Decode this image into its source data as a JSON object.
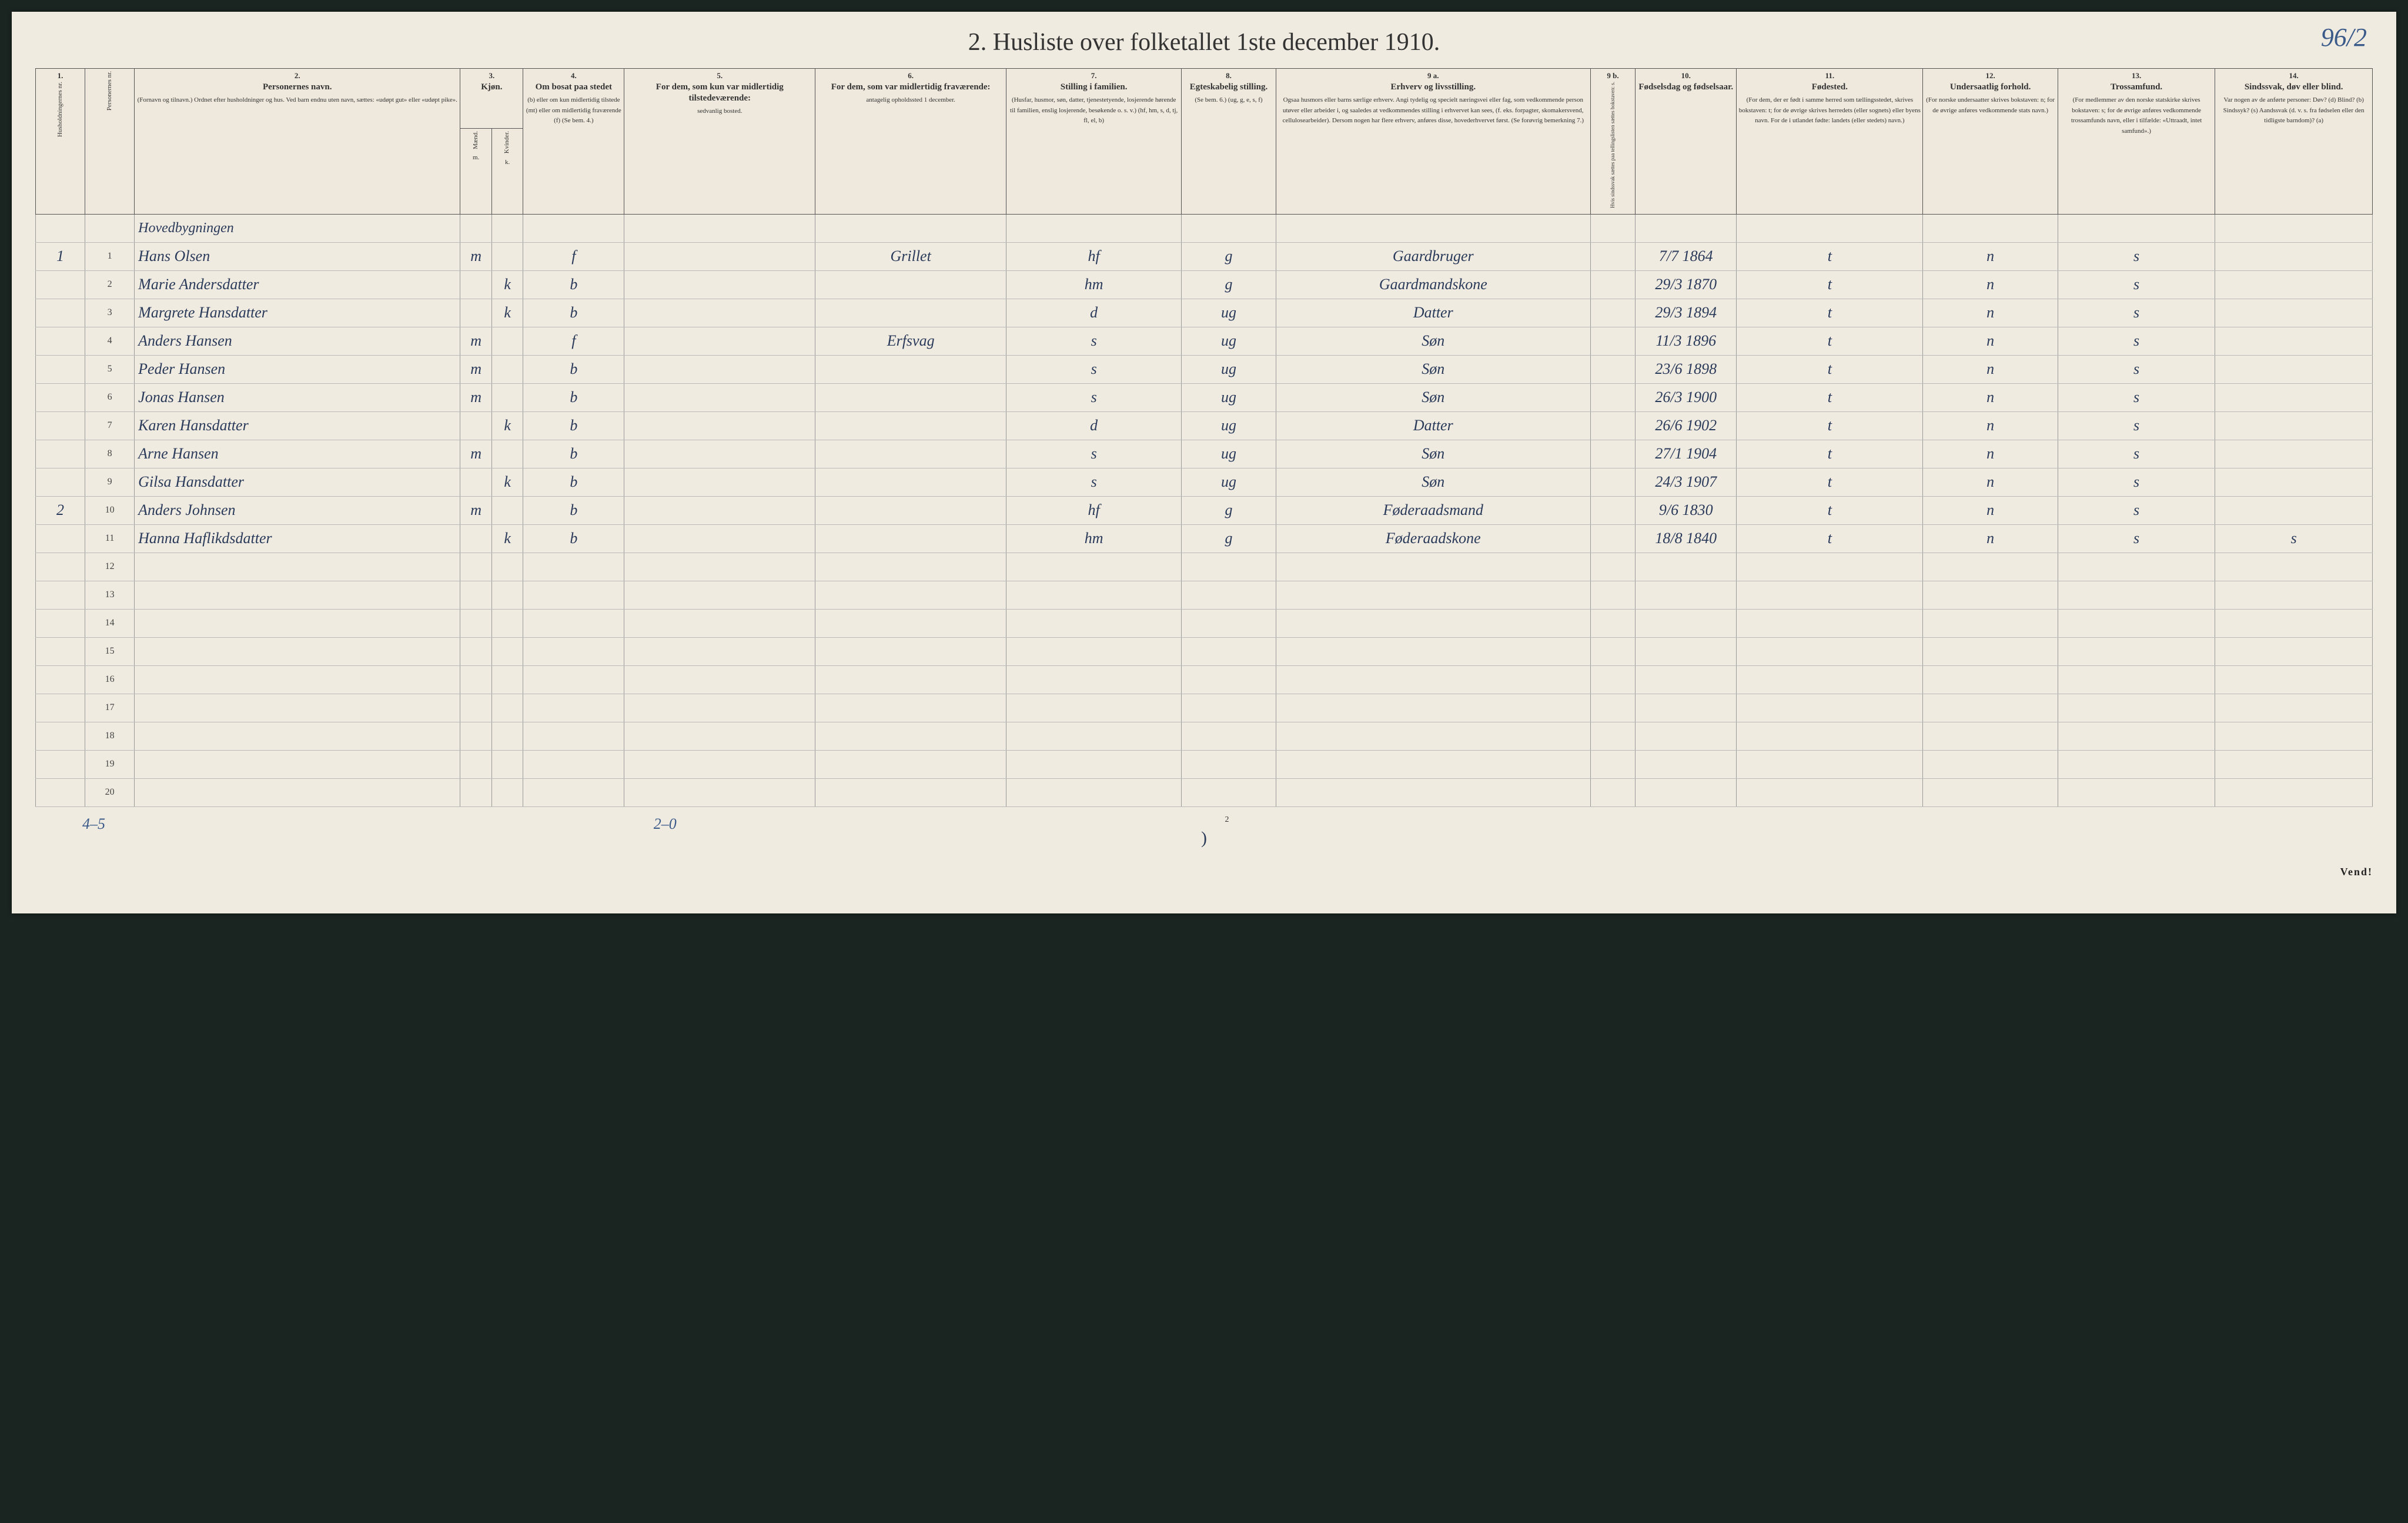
{
  "title": "2.  Husliste over folketallet 1ste december 1910.",
  "page_number_handwritten": "96/2",
  "columns": {
    "c1": {
      "num": "1.",
      "title": "Husholdningernes nr."
    },
    "c1b": {
      "title": "Personernes nr."
    },
    "c2": {
      "num": "2.",
      "title": "Personernes navn.",
      "sub": "(Fornavn og tilnavn.)\nOrdnet efter husholdninger og hus.\nVed barn endnu uten navn, sættes: «udøpt gut» eller «udøpt pike»."
    },
    "c3": {
      "num": "3.",
      "title": "Kjøn.",
      "sub_a": "Mænd.",
      "sub_b": "Kvinder.",
      "foot": "m.   k."
    },
    "c4": {
      "num": "4.",
      "title": "Om bosat paa stedet",
      "sub": "(b) eller om kun midlertidig tilstede (mt) eller om midlertidig fraværende (f) (Se bem. 4.)"
    },
    "c5": {
      "num": "5.",
      "title": "For dem, som kun var midlertidig tilstedeværende:",
      "sub": "sedvanlig bosted."
    },
    "c6": {
      "num": "6.",
      "title": "For dem, som var midlertidig fraværende:",
      "sub": "antagelig opholdssted 1 december."
    },
    "c7": {
      "num": "7.",
      "title": "Stilling i familien.",
      "sub": "(Husfar, husmor, søn, datter, tjenestetyende, losjerende hørende til familien, enslig losjerende, besøkende o. s. v.)\n(hf, hm, s, d, tj, fl, el, b)"
    },
    "c8": {
      "num": "8.",
      "title": "Egteskabelig stilling.",
      "sub": "(Se bem. 6.)\n(ug, g, e, s, f)"
    },
    "c9a": {
      "num": "9 a.",
      "title": "Erhverv og livsstilling.",
      "sub": "Ogsaa husmors eller barns særlige erhverv. Angi tydelig og specielt næringsvei eller fag, som vedkommende person utøver eller arbeider i, og saaledes at vedkommendes stilling i erhvervet kan sees, (f. eks. forpagter, skomakersvend, cellulosearbeider). Dersom nogen har flere erhverv, anføres disse, hovederhvervet først.\n(Se forøvrig bemerkning 7.)"
    },
    "c9b": {
      "num": "9 b.",
      "sub": "Hvis sindssvak sættes paa tellingslisten sættes bokstaven: s."
    },
    "c10": {
      "num": "10.",
      "title": "Fødselsdag og fødselsaar."
    },
    "c11": {
      "num": "11.",
      "title": "Fødested.",
      "sub": "(For dem, der er født i samme herred som tællingsstedet, skrives bokstaven: t; for de øvrige skrives herredets (eller sognets) eller byens navn. For de i utlandet fødte: landets (eller stedets) navn.)"
    },
    "c12": {
      "num": "12.",
      "title": "Undersaatlig forhold.",
      "sub": "(For norske undersaatter skrives bokstaven: n; for de øvrige anføres vedkommende stats navn.)"
    },
    "c13": {
      "num": "13.",
      "title": "Trossamfund.",
      "sub": "(For medlemmer av den norske statskirke skrives bokstaven: s; for de øvrige anføres vedkommende trossamfunds navn, eller i tilfælde: «Uttraadt, intet samfund».)"
    },
    "c14": {
      "num": "14.",
      "title": "Sindssvak, døv eller blind.",
      "sub": "Var nogen av de anførte personer:\nDøv?      (d)\nBlind?     (b)\nSindssyk? (s)\nAandssvak (d. v. s. fra fødselen eller den tidligste barndom)? (a)"
    }
  },
  "section_label": "Hovedbygningen",
  "rows": [
    {
      "hh": "1",
      "pn": "1",
      "name": "Hans Olsen",
      "m": "m",
      "k": "",
      "bosat": "f",
      "c5": "",
      "c6": "Grillet",
      "fam": "hf",
      "egte": "g",
      "erhverv": "Gaardbruger",
      "c9b": "",
      "fods": "7/7 1864",
      "fsted": "t",
      "und": "n",
      "tros": "s",
      "c14": ""
    },
    {
      "hh": "",
      "pn": "2",
      "name": "Marie Andersdatter",
      "m": "",
      "k": "k",
      "bosat": "b",
      "c5": "",
      "c6": "",
      "fam": "hm",
      "egte": "g",
      "erhverv": "Gaardmandskone",
      "c9b": "",
      "fods": "29/3 1870",
      "fsted": "t",
      "und": "n",
      "tros": "s",
      "c14": ""
    },
    {
      "hh": "",
      "pn": "3",
      "name": "Margrete Hansdatter",
      "m": "",
      "k": "k",
      "bosat": "b",
      "c5": "",
      "c6": "",
      "fam": "d",
      "egte": "ug",
      "erhverv": "Datter",
      "c9b": "",
      "fods": "29/3 1894",
      "fsted": "t",
      "und": "n",
      "tros": "s",
      "c14": ""
    },
    {
      "hh": "",
      "pn": "4",
      "name": "Anders Hansen",
      "m": "m",
      "k": "",
      "bosat": "f",
      "c5": "",
      "c6": "Erfsvag",
      "fam": "s",
      "egte": "ug",
      "erhverv": "Søn",
      "c9b": "",
      "fods": "11/3 1896",
      "fsted": "t",
      "und": "n",
      "tros": "s",
      "c14": ""
    },
    {
      "hh": "",
      "pn": "5",
      "name": "Peder Hansen",
      "m": "m",
      "k": "",
      "bosat": "b",
      "c5": "",
      "c6": "",
      "fam": "s",
      "egte": "ug",
      "erhverv": "Søn",
      "c9b": "",
      "fods": "23/6 1898",
      "fsted": "t",
      "und": "n",
      "tros": "s",
      "c14": ""
    },
    {
      "hh": "",
      "pn": "6",
      "name": "Jonas Hansen",
      "m": "m",
      "k": "",
      "bosat": "b",
      "c5": "",
      "c6": "",
      "fam": "s",
      "egte": "ug",
      "erhverv": "Søn",
      "c9b": "",
      "fods": "26/3 1900",
      "fsted": "t",
      "und": "n",
      "tros": "s",
      "c14": ""
    },
    {
      "hh": "",
      "pn": "7",
      "name": "Karen Hansdatter",
      "m": "",
      "k": "k",
      "bosat": "b",
      "c5": "",
      "c6": "",
      "fam": "d",
      "egte": "ug",
      "erhverv": "Datter",
      "c9b": "",
      "fods": "26/6 1902",
      "fsted": "t",
      "und": "n",
      "tros": "s",
      "c14": ""
    },
    {
      "hh": "",
      "pn": "8",
      "name": "Arne Hansen",
      "m": "m",
      "k": "",
      "bosat": "b",
      "c5": "",
      "c6": "",
      "fam": "s",
      "egte": "ug",
      "erhverv": "Søn",
      "c9b": "",
      "fods": "27/1 1904",
      "fsted": "t",
      "und": "n",
      "tros": "s",
      "c14": ""
    },
    {
      "hh": "",
      "pn": "9",
      "name": "Gilsa Hansdatter",
      "m": "",
      "k": "k",
      "bosat": "b",
      "c5": "",
      "c6": "",
      "fam": "s",
      "egte": "ug",
      "erhverv": "Søn",
      "c9b": "",
      "fods": "24/3 1907",
      "fsted": "t",
      "und": "n",
      "tros": "s",
      "c14": ""
    },
    {
      "hh": "2",
      "pn": "10",
      "name": "Anders Johnsen",
      "m": "m",
      "k": "",
      "bosat": "b",
      "c5": "",
      "c6": "",
      "fam": "hf",
      "egte": "g",
      "erhverv": "Føderaadsmand",
      "c9b": "",
      "fods": "9/6 1830",
      "fsted": "t",
      "und": "n",
      "tros": "s",
      "c14": ""
    },
    {
      "hh": "",
      "pn": "11",
      "name": "Hanna Haflikdsdatter",
      "m": "",
      "k": "k",
      "bosat": "b",
      "c5": "",
      "c6": "",
      "fam": "hm",
      "egte": "g",
      "erhverv": "Føderaadskone",
      "c9b": "",
      "fods": "18/8 1840",
      "fsted": "t",
      "und": "n",
      "tros": "s",
      "c14": "s"
    }
  ],
  "empty_row_numbers": [
    "12",
    "13",
    "14",
    "15",
    "16",
    "17",
    "18",
    "19",
    "20"
  ],
  "foot_left": "4–5",
  "foot_mid_left": "2–0",
  "foot_pg": "2",
  "vend": "Vend!",
  "flourish": ")",
  "colors": {
    "page_bg": "#f0ebe0",
    "outer_bg": "#1a2420",
    "ink": "#2a3a5a",
    "print": "#333333",
    "rule": "#555555"
  }
}
